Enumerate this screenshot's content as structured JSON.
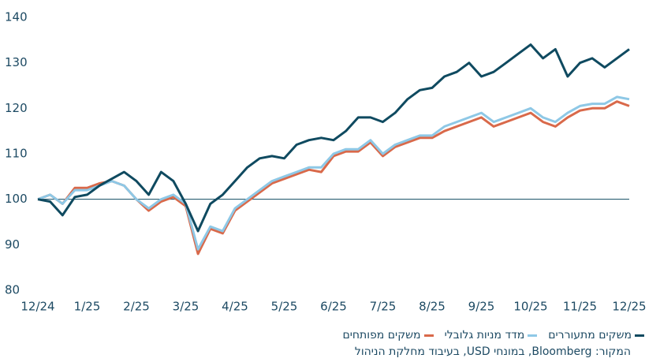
{
  "chart_data": {
    "type": "line",
    "x": [
      0,
      0.25,
      0.5,
      0.75,
      1,
      1.25,
      1.5,
      1.75,
      2,
      2.25,
      2.5,
      2.75,
      3,
      3.25,
      3.5,
      3.75,
      4,
      4.25,
      4.5,
      4.75,
      5,
      5.25,
      5.5,
      5.75,
      6,
      6.25,
      6.5,
      6.75,
      7,
      7.25,
      7.5,
      7.75,
      8,
      8.25,
      8.5,
      8.75,
      9,
      9.25,
      9.5,
      9.75,
      10,
      10.25,
      10.5,
      10.75,
      11,
      11.25,
      11.5,
      11.75,
      12
    ],
    "series": [
      {
        "name": "משקים מתעוררים",
        "color": "#0f4a60",
        "values": [
          100,
          99.5,
          96.5,
          100.5,
          101,
          103,
          104.5,
          106,
          104,
          101,
          106,
          104,
          99,
          93,
          99,
          101,
          104,
          107,
          109,
          109.5,
          109,
          112,
          113,
          113.5,
          113,
          115,
          118,
          118,
          117,
          119,
          122,
          124,
          124.5,
          127,
          128,
          130,
          127,
          128,
          130,
          132,
          134,
          131,
          133,
          127,
          130,
          131,
          129,
          131,
          133
        ]
      },
      {
        "name": "מדד מניות גלובלי",
        "color": "#8ec8e6",
        "values": [
          100,
          101,
          99,
          102,
          102,
          103,
          104,
          103,
          100,
          98,
          100,
          101,
          99,
          89,
          94,
          93,
          98,
          100,
          102,
          104,
          105,
          106,
          107,
          107,
          110,
          111,
          111,
          113,
          110,
          112,
          113,
          114,
          114,
          116,
          117,
          118,
          119,
          117,
          118,
          119,
          120,
          118,
          117,
          119,
          120.5,
          121,
          121,
          122.5,
          122
        ]
      },
      {
        "name": "משקים מפותחים",
        "color": "#d9694a",
        "values": [
          100,
          101,
          99,
          102.5,
          102.5,
          103.5,
          104,
          103,
          100,
          97.5,
          99.5,
          100.5,
          98.5,
          88,
          93.5,
          92.5,
          97.5,
          99.5,
          101.5,
          103.5,
          104.5,
          105.5,
          106.5,
          106,
          109.5,
          110.5,
          110.5,
          112.5,
          109.5,
          111.5,
          112.5,
          113.5,
          113.5,
          115,
          116,
          117,
          118,
          116,
          117,
          118,
          119,
          117,
          116,
          118,
          119.5,
          120,
          120,
          121.5,
          120.5
        ]
      }
    ],
    "xlim": [
      0,
      12
    ],
    "xticks": [
      {
        "value": 0,
        "label": "12/24"
      },
      {
        "value": 1,
        "label": "1/25"
      },
      {
        "value": 2,
        "label": "2/25"
      },
      {
        "value": 3,
        "label": "3/25"
      },
      {
        "value": 4,
        "label": "4/25"
      },
      {
        "value": 5,
        "label": "5/25"
      },
      {
        "value": 6,
        "label": "6/25"
      },
      {
        "value": 7,
        "label": "7/25"
      },
      {
        "value": 8,
        "label": "8/25"
      },
      {
        "value": 9,
        "label": "9/25"
      },
      {
        "value": 10,
        "label": "10/25"
      },
      {
        "value": 11,
        "label": "11/25"
      },
      {
        "value": 12,
        "label": "12/25"
      }
    ],
    "ylim": [
      80,
      140
    ],
    "yticks": [
      80,
      90,
      100,
      110,
      120,
      130,
      140
    ],
    "reference_line": 100,
    "grid": false,
    "source": "המקור: Bloomberg, במונחי USD, בעיבוד מחלקת הניהול"
  }
}
